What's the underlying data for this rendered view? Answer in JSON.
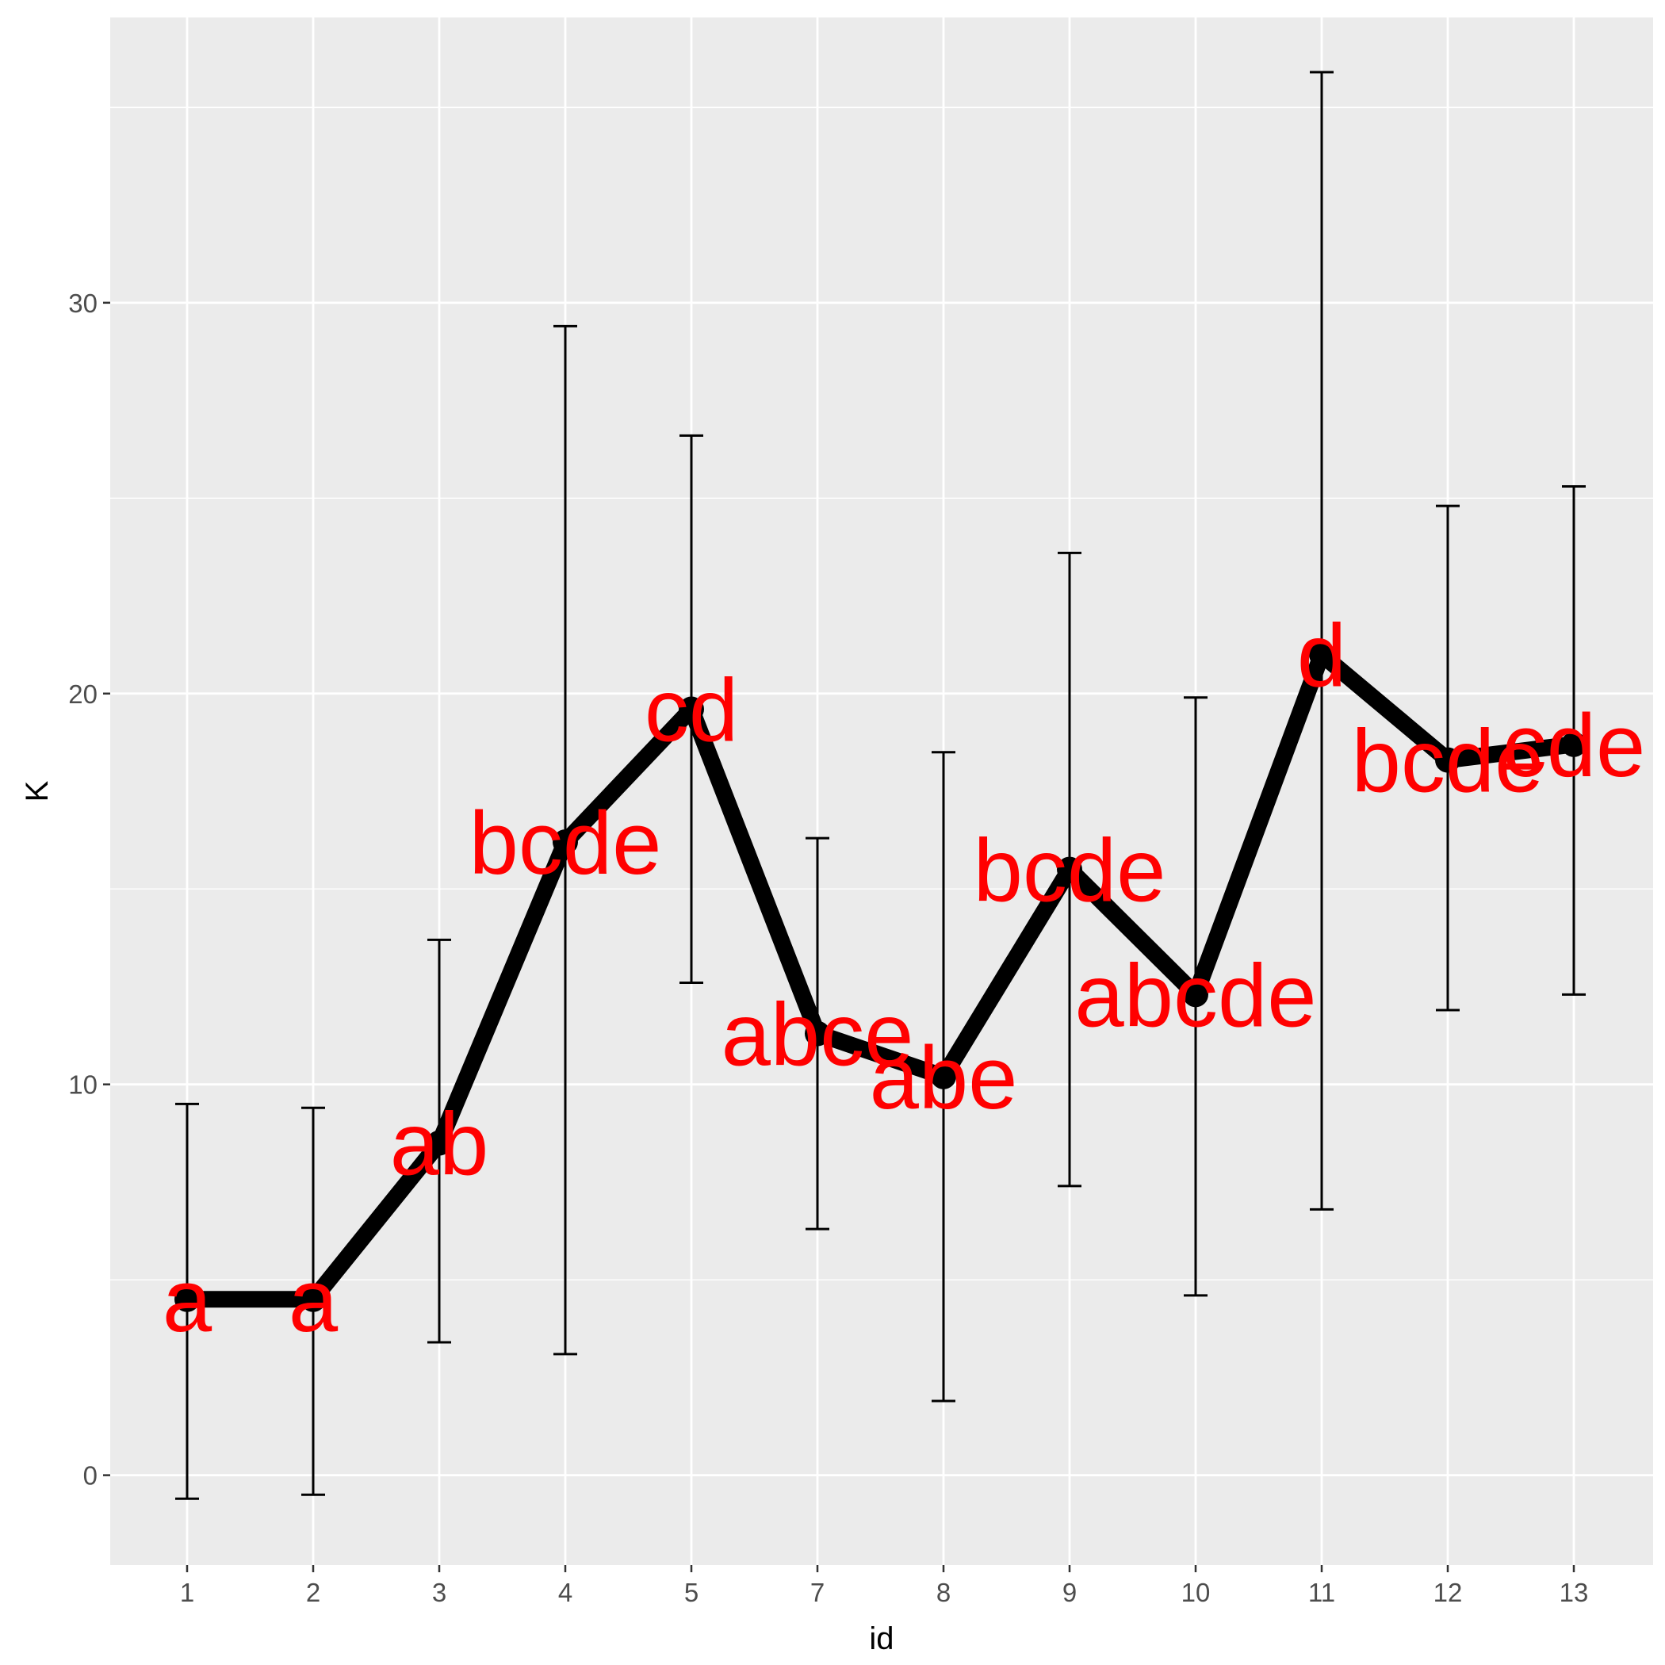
{
  "chart_data": {
    "type": "line",
    "xlabel": "id",
    "ylabel": "K",
    "categories": [
      "1",
      "2",
      "3",
      "4",
      "5",
      "7",
      "8",
      "9",
      "10",
      "11",
      "12",
      "13"
    ],
    "values": [
      4.5,
      4.5,
      8.5,
      16.2,
      19.6,
      11.3,
      10.2,
      15.5,
      12.3,
      21.0,
      18.3,
      18.7
    ],
    "error_low": [
      -0.6,
      -0.5,
      3.4,
      3.1,
      12.6,
      6.3,
      1.9,
      7.4,
      4.6,
      6.8,
      11.9,
      12.3
    ],
    "error_high": [
      9.5,
      9.4,
      13.7,
      29.4,
      26.6,
      16.3,
      18.5,
      23.6,
      19.9,
      35.9,
      24.8,
      25.3
    ],
    "labels": [
      "a",
      "a",
      "ab",
      "bcde",
      "cd",
      "abce",
      "abe",
      "bcde",
      "abcde",
      "d",
      "bcde",
      "cde"
    ],
    "ylim": [
      -2.3,
      37.3
    ],
    "yticks": [
      0,
      10,
      20,
      30
    ],
    "grid": true,
    "colors": {
      "panel": "#ebebeb",
      "grid": "#ffffff",
      "line": "#000000",
      "labels": "#ff0000"
    }
  }
}
